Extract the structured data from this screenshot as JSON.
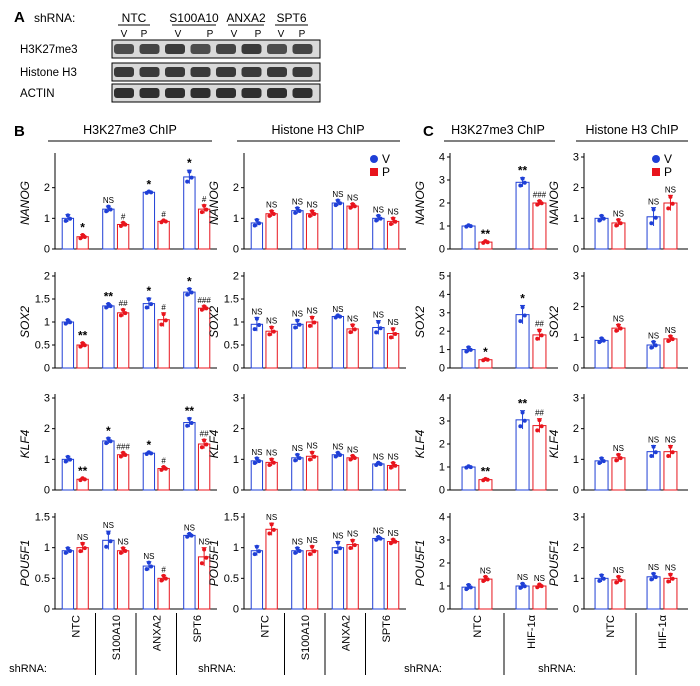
{
  "panel_labels": {
    "a": "A",
    "b": "B",
    "c": "C"
  },
  "blot": {
    "shrna_label": "shRNA:",
    "groups": [
      "NTC",
      "S100A10",
      "ANXA2",
      "SPT6"
    ],
    "lane_labels": [
      "V",
      "P"
    ],
    "rows": [
      "H3K27me3",
      "Histone H3",
      "ACTIN"
    ]
  },
  "section_titles": {
    "b_h3k27": "H3K27me3 ChIP",
    "b_h3": "Histone H3 ChIP",
    "c_h3k27": "H3K27me3 ChIP",
    "c_h3": "Histone H3 ChIP"
  },
  "legend": [
    {
      "label": "V",
      "color": "#1f3fd6"
    },
    {
      "label": "P",
      "color": "#e8141c"
    }
  ],
  "xaxis": {
    "prefix": "shRNA:",
    "b_groups": [
      "NTC",
      "S100A10",
      "ANXA2",
      "SPT6"
    ],
    "c_groups": [
      "NTC",
      "HIF-1α"
    ]
  },
  "colors": {
    "V": "#1f3fd6",
    "P": "#e8141c"
  },
  "chart_data": [
    {
      "id": "b-h3k27-nanog",
      "type": "bar",
      "ylabel": "NANOG",
      "yticks": [
        0,
        1,
        2
      ],
      "ylim": [
        0,
        3.0
      ],
      "categories": [
        "NTC",
        "S100A10",
        "ANXA2",
        "SPT6"
      ],
      "series": [
        {
          "name": "V",
          "values": [
            1.0,
            1.3,
            1.85,
            2.35
          ],
          "err": [
            0.12,
            0.1,
            0.03,
            0.22
          ]
        },
        {
          "name": "P",
          "values": [
            0.4,
            0.8,
            0.9,
            1.3
          ],
          "err": [
            0.07,
            0.07,
            0.04,
            0.14
          ]
        }
      ],
      "annotations": {
        "V": [
          "",
          "NS",
          "*",
          "*"
        ],
        "P": [
          "*",
          "#",
          "#",
          "#"
        ]
      }
    },
    {
      "id": "b-h3-nanog",
      "type": "bar",
      "ylabel": "NANOG",
      "yticks": [
        0,
        1,
        2
      ],
      "ylim": [
        0,
        3.0
      ],
      "categories": [
        "NTC",
        "S100A10",
        "ANXA2",
        "SPT6"
      ],
      "series": [
        {
          "name": "V",
          "values": [
            0.85,
            1.25,
            1.5,
            1.0
          ],
          "err": [
            0.12,
            0.1,
            0.1,
            0.1
          ]
        },
        {
          "name": "P",
          "values": [
            1.15,
            1.15,
            1.4,
            0.9
          ],
          "err": [
            0.1,
            0.1,
            0.08,
            0.12
          ]
        }
      ],
      "annotations": {
        "V": [
          "",
          "NS",
          "NS",
          "NS"
        ],
        "P": [
          "NS",
          "NS",
          "NS",
          "NS"
        ]
      }
    },
    {
      "id": "b-h3k27-sox2",
      "type": "bar",
      "ylabel": "SOX2",
      "yticks": [
        0,
        0.5,
        1,
        1.5,
        2
      ],
      "yticklabels": [
        "0",
        "0.5",
        "1",
        "1.5",
        "2"
      ],
      "ylim": [
        0,
        2.0
      ],
      "categories": [
        "NTC",
        "S100A10",
        "ANXA2",
        "SPT6"
      ],
      "series": [
        {
          "name": "V",
          "values": [
            1.0,
            1.35,
            1.4,
            1.65
          ],
          "err": [
            0.05,
            0.05,
            0.12,
            0.08
          ]
        },
        {
          "name": "P",
          "values": [
            0.5,
            1.2,
            1.05,
            1.3
          ],
          "err": [
            0.05,
            0.08,
            0.15,
            0.05
          ]
        }
      ],
      "annotations": {
        "V": [
          "",
          "**",
          "*",
          "*"
        ],
        "P": [
          "**",
          "##",
          "#",
          "###"
        ]
      }
    },
    {
      "id": "b-h3-sox2",
      "type": "bar",
      "ylabel": "SOX2",
      "yticks": [
        0,
        0.5,
        1,
        1.5,
        2
      ],
      "yticklabels": [
        "0",
        "0.5",
        "1",
        "1.5",
        "2"
      ],
      "ylim": [
        0,
        2.0
      ],
      "categories": [
        "NTC",
        "S100A10",
        "ANXA2",
        "SPT6"
      ],
      "series": [
        {
          "name": "V",
          "values": [
            0.95,
            0.95,
            1.12,
            0.88
          ],
          "err": [
            0.15,
            0.1,
            0.03,
            0.15
          ]
        },
        {
          "name": "P",
          "values": [
            0.8,
            1.0,
            0.85,
            0.75
          ],
          "err": [
            0.1,
            0.12,
            0.1,
            0.12
          ]
        }
      ],
      "annotations": {
        "V": [
          "NS",
          "NS",
          "NS",
          "NS"
        ],
        "P": [
          "NS",
          "NS",
          "NS",
          "NS"
        ]
      }
    },
    {
      "id": "b-h3k27-klf4",
      "type": "bar",
      "ylabel": "KLF4",
      "yticks": [
        0,
        1,
        2,
        3
      ],
      "ylim": [
        0,
        3.0
      ],
      "categories": [
        "NTC",
        "S100A10",
        "ANXA2",
        "SPT6"
      ],
      "series": [
        {
          "name": "V",
          "values": [
            1.0,
            1.6,
            1.2,
            2.2
          ],
          "err": [
            0.1,
            0.1,
            0.04,
            0.15
          ]
        },
        {
          "name": "P",
          "values": [
            0.35,
            1.15,
            0.7,
            1.5
          ],
          "err": [
            0.04,
            0.08,
            0.06,
            0.15
          ]
        }
      ],
      "annotations": {
        "V": [
          "",
          "*",
          "*",
          "**"
        ],
        "P": [
          "**",
          "###",
          "#",
          "##"
        ]
      }
    },
    {
      "id": "b-h3-klf4",
      "type": "bar",
      "ylabel": "KLF4",
      "yticks": [
        0,
        1,
        2,
        3
      ],
      "ylim": [
        0,
        3.0
      ],
      "categories": [
        "NTC",
        "S100A10",
        "ANXA2",
        "SPT6"
      ],
      "series": [
        {
          "name": "V",
          "values": [
            0.95,
            1.05,
            1.15,
            0.85
          ],
          "err": [
            0.1,
            0.12,
            0.08,
            0.05
          ]
        },
        {
          "name": "P",
          "values": [
            0.9,
            1.1,
            1.05,
            0.8
          ],
          "err": [
            0.12,
            0.15,
            0.08,
            0.1
          ]
        }
      ],
      "annotations": {
        "V": [
          "NS",
          "NS",
          "NS",
          "NS"
        ],
        "P": [
          "NS",
          "NS",
          "NS",
          "NS"
        ]
      }
    },
    {
      "id": "b-h3k27-pou5f1",
      "type": "bar",
      "ylabel": "POU5F1",
      "yticks": [
        0,
        0.5,
        1,
        1.5
      ],
      "yticklabels": [
        "0",
        "0.5",
        "1",
        "1.5"
      ],
      "ylim": [
        0,
        1.5
      ],
      "categories": [
        "NTC",
        "S100A10",
        "ANXA2",
        "SPT6"
      ],
      "series": [
        {
          "name": "V",
          "values": [
            0.95,
            1.12,
            0.7,
            1.2
          ],
          "err": [
            0.05,
            0.15,
            0.07,
            0.03
          ]
        },
        {
          "name": "P",
          "values": [
            1.0,
            0.95,
            0.5,
            0.85
          ],
          "err": [
            0.08,
            0.05,
            0.05,
            0.15
          ]
        }
      ],
      "annotations": {
        "V": [
          "",
          "NS",
          "NS",
          "NS"
        ],
        "P": [
          "NS",
          "NS",
          "#",
          "NS"
        ]
      }
    },
    {
      "id": "b-h3-pou5f1",
      "type": "bar",
      "ylabel": "POU5F1",
      "yticks": [
        0,
        0.5,
        1,
        1.5
      ],
      "yticklabels": [
        "0",
        "0.5",
        "1",
        "1.5"
      ],
      "ylim": [
        0,
        1.5
      ],
      "categories": [
        "NTC",
        "S100A10",
        "ANXA2",
        "SPT6"
      ],
      "series": [
        {
          "name": "V",
          "values": [
            0.95,
            0.95,
            1.0,
            1.15
          ],
          "err": [
            0.08,
            0.05,
            0.1,
            0.03
          ]
        },
        {
          "name": "P",
          "values": [
            1.3,
            0.95,
            1.05,
            1.1
          ],
          "err": [
            0.1,
            0.08,
            0.08,
            0.04
          ]
        }
      ],
      "annotations": {
        "V": [
          "",
          "NS",
          "NS",
          "NS"
        ],
        "P": [
          "NS",
          "NS",
          "NS",
          "NS"
        ]
      }
    },
    {
      "id": "c-h3k27-nanog",
      "type": "bar",
      "ylabel": "NANOG",
      "yticks": [
        0,
        1,
        2,
        3,
        4
      ],
      "ylim": [
        0,
        4.0
      ],
      "categories": [
        "NTC",
        "HIF-1α"
      ],
      "series": [
        {
          "name": "V",
          "values": [
            1.0,
            2.9
          ],
          "err": [
            0.04,
            0.2
          ]
        },
        {
          "name": "P",
          "values": [
            0.3,
            2.0
          ],
          "err": [
            0.05,
            0.1
          ]
        }
      ],
      "annotations": {
        "V": [
          "",
          "**"
        ],
        "P": [
          "**",
          "###"
        ]
      }
    },
    {
      "id": "c-h3-nanog",
      "type": "bar",
      "ylabel": "NANOG",
      "yticks": [
        0,
        1,
        2,
        3
      ],
      "ylim": [
        0,
        3.0
      ],
      "categories": [
        "NTC",
        "HIF-1α"
      ],
      "series": [
        {
          "name": "V",
          "values": [
            1.0,
            1.05
          ],
          "err": [
            0.1,
            0.3
          ]
        },
        {
          "name": "P",
          "values": [
            0.85,
            1.5
          ],
          "err": [
            0.12,
            0.25
          ]
        }
      ],
      "annotations": {
        "V": [
          "",
          "NS"
        ],
        "P": [
          "NS",
          "NS"
        ]
      }
    },
    {
      "id": "c-h3k27-sox2",
      "type": "bar",
      "ylabel": "SOX2",
      "yticks": [
        0,
        1,
        2,
        3,
        4,
        5
      ],
      "ylim": [
        0,
        5.0
      ],
      "categories": [
        "NTC",
        "HIF-1α"
      ],
      "series": [
        {
          "name": "V",
          "values": [
            1.0,
            2.9
          ],
          "err": [
            0.15,
            0.5
          ]
        },
        {
          "name": "P",
          "values": [
            0.45,
            1.8
          ],
          "err": [
            0.04,
            0.3
          ]
        }
      ],
      "annotations": {
        "V": [
          "",
          "*"
        ],
        "P": [
          "*",
          "##"
        ]
      }
    },
    {
      "id": "c-h3-sox2",
      "type": "bar",
      "ylabel": "SOX2",
      "yticks": [
        0,
        1,
        2,
        3
      ],
      "ylim": [
        0,
        3.0
      ],
      "categories": [
        "NTC",
        "HIF-1α"
      ],
      "series": [
        {
          "name": "V",
          "values": [
            0.9,
            0.75
          ],
          "err": [
            0.08,
            0.12
          ]
        },
        {
          "name": "P",
          "values": [
            1.3,
            0.95
          ],
          "err": [
            0.12,
            0.1
          ]
        }
      ],
      "annotations": {
        "V": [
          "",
          "NS"
        ],
        "P": [
          "NS",
          "NS"
        ]
      }
    },
    {
      "id": "c-h3k27-klf4",
      "type": "bar",
      "ylabel": "KLF4",
      "yticks": [
        0,
        1,
        2,
        3,
        4
      ],
      "ylim": [
        0,
        4.0
      ],
      "categories": [
        "NTC",
        "HIF-1α"
      ],
      "series": [
        {
          "name": "V",
          "values": [
            1.0,
            3.05
          ],
          "err": [
            0.04,
            0.4
          ]
        },
        {
          "name": "P",
          "values": [
            0.45,
            2.8
          ],
          "err": [
            0.04,
            0.3
          ]
        }
      ],
      "annotations": {
        "V": [
          "",
          "**"
        ],
        "P": [
          "**",
          "##"
        ]
      }
    },
    {
      "id": "c-h3-klf4",
      "type": "bar",
      "ylabel": "KLF4",
      "yticks": [
        0,
        1,
        2,
        3
      ],
      "ylim": [
        0,
        3.0
      ],
      "categories": [
        "NTC",
        "HIF-1α"
      ],
      "series": [
        {
          "name": "V",
          "values": [
            0.95,
            1.25
          ],
          "err": [
            0.1,
            0.2
          ]
        },
        {
          "name": "P",
          "values": [
            1.05,
            1.25
          ],
          "err": [
            0.12,
            0.2
          ]
        }
      ],
      "annotations": {
        "V": [
          "",
          "NS"
        ],
        "P": [
          "NS",
          "NS"
        ]
      }
    },
    {
      "id": "c-h3k27-pou5f1",
      "type": "bar",
      "ylabel": "POU5F1",
      "yticks": [
        0,
        1,
        2,
        3,
        4
      ],
      "ylim": [
        0,
        4.0
      ],
      "categories": [
        "NTC",
        "HIF-1α"
      ],
      "series": [
        {
          "name": "V",
          "values": [
            0.95,
            1.0
          ],
          "err": [
            0.12,
            0.12
          ]
        },
        {
          "name": "P",
          "values": [
            1.3,
            1.0
          ],
          "err": [
            0.12,
            0.08
          ]
        }
      ],
      "annotations": {
        "V": [
          "",
          "NS"
        ],
        "P": [
          "NS",
          "NS"
        ]
      }
    },
    {
      "id": "c-h3-pou5f1",
      "type": "bar",
      "ylabel": "POU5F1",
      "yticks": [
        0,
        1,
        2,
        3
      ],
      "ylim": [
        0,
        3.0
      ],
      "categories": [
        "NTC",
        "HIF-1α"
      ],
      "series": [
        {
          "name": "V",
          "values": [
            1.0,
            1.05
          ],
          "err": [
            0.12,
            0.12
          ]
        },
        {
          "name": "P",
          "values": [
            0.95,
            1.0
          ],
          "err": [
            0.12,
            0.15
          ]
        }
      ],
      "annotations": {
        "V": [
          "",
          "NS"
        ],
        "P": [
          "NS",
          "NS"
        ]
      }
    }
  ]
}
